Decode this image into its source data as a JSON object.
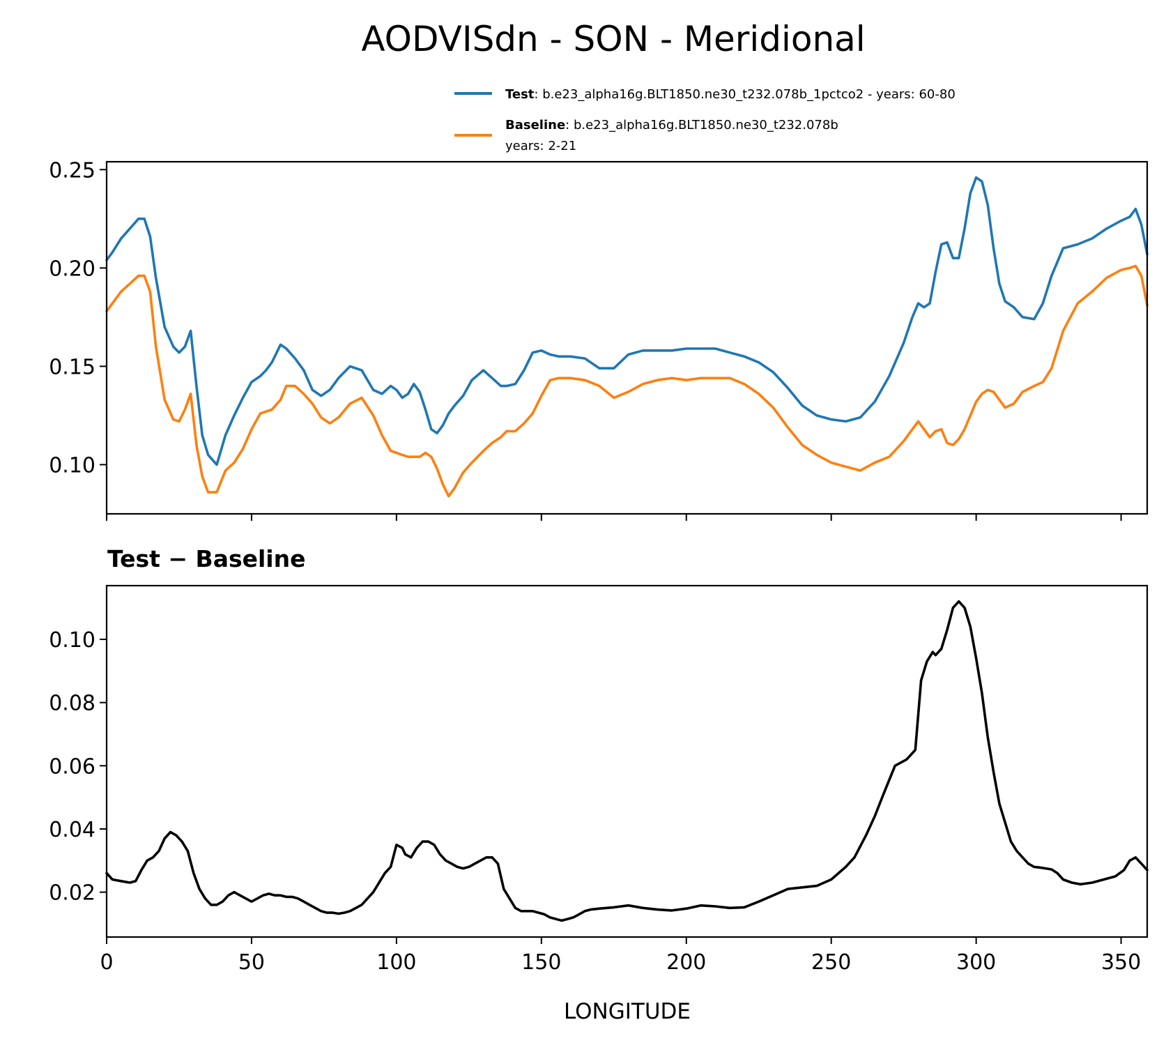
{
  "title": "AODVISdn - SON - Meridional",
  "colors": {
    "test": "#1f77b4",
    "baseline": "#ff7f0e",
    "diff": "#000000"
  },
  "legend": {
    "test": {
      "label_bold": "Test",
      "label_rest": ": b.e23_alpha16g.BLT1850.ne30_t232.078b_1pctco2 - years: 60-80"
    },
    "baseline": {
      "label_bold": "Baseline",
      "label_rest": ": b.e23_alpha16g.BLT1850.ne30_t232.078b",
      "label_line2": "years: 2-21"
    }
  },
  "chart_data": [
    {
      "type": "line",
      "panel": "top",
      "title": "",
      "xlabel": "",
      "ylabel": "",
      "xlim": [
        0,
        359
      ],
      "ylim": [
        0.075,
        0.254
      ],
      "yticks": [
        0.1,
        0.15,
        0.2,
        0.25
      ],
      "ytick_labels": [
        "0.10",
        "0.15",
        "0.20",
        "0.25"
      ],
      "xticks": [
        0,
        50,
        100,
        150,
        200,
        250,
        300,
        350
      ],
      "series": [
        {
          "name": "Test",
          "x": [
            0,
            2,
            5,
            8,
            11,
            13,
            15,
            17,
            20,
            23,
            25,
            27,
            29,
            31,
            33,
            35,
            38,
            41,
            44,
            47,
            50,
            53,
            55,
            57,
            60,
            62,
            65,
            68,
            71,
            74,
            77,
            80,
            84,
            88,
            92,
            95,
            98,
            100,
            102,
            104,
            106,
            108,
            110,
            112,
            114,
            116,
            118,
            120,
            123,
            126,
            130,
            133,
            136,
            138,
            141,
            144,
            147,
            150,
            153,
            156,
            160,
            165,
            170,
            175,
            180,
            185,
            190,
            195,
            200,
            205,
            210,
            215,
            220,
            225,
            230,
            235,
            240,
            245,
            250,
            255,
            260,
            265,
            270,
            275,
            278,
            280,
            282,
            284,
            286,
            288,
            290,
            292,
            294,
            296,
            298,
            300,
            302,
            304,
            306,
            308,
            310,
            313,
            316,
            320,
            323,
            326,
            330,
            335,
            340,
            345,
            350,
            353,
            355,
            357,
            359
          ],
          "values": [
            0.204,
            0.208,
            0.215,
            0.22,
            0.225,
            0.225,
            0.216,
            0.195,
            0.17,
            0.16,
            0.157,
            0.16,
            0.168,
            0.14,
            0.115,
            0.105,
            0.1,
            0.115,
            0.125,
            0.134,
            0.142,
            0.145,
            0.148,
            0.152,
            0.161,
            0.159,
            0.154,
            0.148,
            0.138,
            0.135,
            0.138,
            0.144,
            0.15,
            0.148,
            0.138,
            0.136,
            0.14,
            0.138,
            0.134,
            0.136,
            0.141,
            0.137,
            0.128,
            0.118,
            0.116,
            0.12,
            0.126,
            0.13,
            0.135,
            0.143,
            0.148,
            0.144,
            0.14,
            0.14,
            0.141,
            0.148,
            0.157,
            0.158,
            0.156,
            0.155,
            0.155,
            0.154,
            0.149,
            0.149,
            0.156,
            0.158,
            0.158,
            0.158,
            0.159,
            0.159,
            0.159,
            0.157,
            0.155,
            0.152,
            0.147,
            0.139,
            0.13,
            0.125,
            0.123,
            0.122,
            0.124,
            0.132,
            0.145,
            0.162,
            0.175,
            0.182,
            0.18,
            0.182,
            0.198,
            0.212,
            0.213,
            0.205,
            0.205,
            0.22,
            0.238,
            0.246,
            0.244,
            0.232,
            0.21,
            0.192,
            0.183,
            0.18,
            0.175,
            0.174,
            0.182,
            0.196,
            0.21,
            0.212,
            0.215,
            0.22,
            0.224,
            0.226,
            0.23,
            0.222,
            0.207
          ]
        },
        {
          "name": "Baseline",
          "x": [
            0,
            2,
            5,
            8,
            11,
            13,
            15,
            17,
            20,
            23,
            25,
            27,
            29,
            31,
            33,
            35,
            38,
            41,
            44,
            47,
            50,
            53,
            55,
            57,
            60,
            62,
            65,
            68,
            71,
            74,
            77,
            80,
            84,
            88,
            92,
            95,
            98,
            100,
            102,
            104,
            106,
            108,
            110,
            112,
            114,
            116,
            118,
            120,
            123,
            126,
            130,
            133,
            136,
            138,
            141,
            144,
            147,
            150,
            153,
            156,
            160,
            165,
            170,
            175,
            180,
            185,
            190,
            195,
            200,
            205,
            210,
            215,
            220,
            225,
            230,
            235,
            240,
            245,
            250,
            255,
            260,
            265,
            270,
            275,
            278,
            280,
            282,
            284,
            286,
            288,
            290,
            292,
            294,
            296,
            298,
            300,
            302,
            304,
            306,
            308,
            310,
            313,
            316,
            320,
            323,
            326,
            330,
            335,
            340,
            345,
            350,
            353,
            355,
            357,
            359
          ],
          "values": [
            0.178,
            0.182,
            0.188,
            0.192,
            0.196,
            0.196,
            0.188,
            0.16,
            0.133,
            0.123,
            0.122,
            0.128,
            0.136,
            0.11,
            0.094,
            0.086,
            0.086,
            0.097,
            0.101,
            0.108,
            0.118,
            0.126,
            0.127,
            0.128,
            0.133,
            0.14,
            0.14,
            0.136,
            0.131,
            0.124,
            0.121,
            0.124,
            0.131,
            0.134,
            0.125,
            0.115,
            0.107,
            0.106,
            0.105,
            0.104,
            0.104,
            0.104,
            0.106,
            0.104,
            0.098,
            0.09,
            0.084,
            0.088,
            0.096,
            0.101,
            0.107,
            0.111,
            0.114,
            0.117,
            0.117,
            0.121,
            0.126,
            0.135,
            0.143,
            0.144,
            0.144,
            0.143,
            0.14,
            0.134,
            0.137,
            0.141,
            0.143,
            0.144,
            0.143,
            0.144,
            0.144,
            0.144,
            0.141,
            0.136,
            0.129,
            0.119,
            0.11,
            0.105,
            0.101,
            0.099,
            0.097,
            0.101,
            0.104,
            0.112,
            0.118,
            0.122,
            0.118,
            0.114,
            0.117,
            0.118,
            0.111,
            0.11,
            0.113,
            0.118,
            0.125,
            0.132,
            0.136,
            0.138,
            0.137,
            0.133,
            0.129,
            0.131,
            0.137,
            0.14,
            0.142,
            0.149,
            0.168,
            0.182,
            0.188,
            0.195,
            0.199,
            0.2,
            0.201,
            0.196,
            0.181
          ]
        }
      ]
    },
    {
      "type": "line",
      "panel": "bottom",
      "title": "Test − Baseline",
      "xlabel": "LONGITUDE",
      "ylabel": "",
      "xlim": [
        0,
        359
      ],
      "ylim": [
        0.0058,
        0.117
      ],
      "yticks": [
        0.02,
        0.04,
        0.06,
        0.08,
        0.1
      ],
      "ytick_labels": [
        "0.02",
        "0.04",
        "0.06",
        "0.08",
        "0.10"
      ],
      "xticks": [
        0,
        50,
        100,
        150,
        200,
        250,
        300,
        350
      ],
      "xtick_labels": [
        "0",
        "50",
        "100",
        "150",
        "200",
        "250",
        "300",
        "350"
      ],
      "series": [
        {
          "name": "Test − Baseline",
          "x": [
            0,
            2,
            5,
            8,
            10,
            12,
            14,
            16,
            18,
            20,
            22,
            24,
            26,
            28,
            30,
            32,
            34,
            36,
            38,
            40,
            42,
            44,
            46,
            48,
            50,
            52,
            54,
            56,
            58,
            60,
            62,
            64,
            66,
            68,
            70,
            72,
            74,
            76,
            78,
            80,
            82,
            84,
            86,
            88,
            90,
            92,
            94,
            96,
            98,
            100,
            102,
            103,
            105,
            107,
            109,
            111,
            113,
            115,
            117,
            119,
            121,
            123,
            125,
            127,
            129,
            131,
            133,
            135,
            137,
            139,
            141,
            143,
            145,
            147,
            149,
            151,
            153,
            155,
            157,
            159,
            161,
            163,
            165,
            167,
            170,
            175,
            180,
            185,
            190,
            195,
            200,
            205,
            210,
            215,
            220,
            225,
            230,
            235,
            240,
            245,
            250,
            255,
            258,
            262,
            265,
            268,
            272,
            276,
            279,
            281,
            283,
            285,
            286,
            288,
            290,
            292,
            294,
            296,
            298,
            300,
            302,
            304,
            306,
            308,
            310,
            312,
            314,
            316,
            318,
            320,
            322,
            324,
            326,
            328,
            330,
            333,
            336,
            340,
            344,
            348,
            351,
            353,
            355,
            357,
            359
          ],
          "values": [
            0.026,
            0.024,
            0.0235,
            0.023,
            0.0235,
            0.027,
            0.03,
            0.031,
            0.033,
            0.037,
            0.039,
            0.038,
            0.036,
            0.033,
            0.026,
            0.021,
            0.018,
            0.016,
            0.016,
            0.017,
            0.019,
            0.02,
            0.019,
            0.018,
            0.017,
            0.018,
            0.019,
            0.0195,
            0.019,
            0.019,
            0.0185,
            0.0185,
            0.018,
            0.017,
            0.016,
            0.015,
            0.014,
            0.0135,
            0.0135,
            0.0132,
            0.0135,
            0.014,
            0.015,
            0.016,
            0.018,
            0.02,
            0.023,
            0.026,
            0.028,
            0.035,
            0.034,
            0.032,
            0.031,
            0.034,
            0.036,
            0.036,
            0.035,
            0.032,
            0.03,
            0.029,
            0.028,
            0.0275,
            0.028,
            0.029,
            0.03,
            0.031,
            0.031,
            0.029,
            0.021,
            0.018,
            0.015,
            0.014,
            0.014,
            0.014,
            0.0135,
            0.013,
            0.012,
            0.0115,
            0.011,
            0.0115,
            0.012,
            0.013,
            0.014,
            0.0145,
            0.0148,
            0.0152,
            0.0158,
            0.015,
            0.0145,
            0.0142,
            0.0148,
            0.0158,
            0.0155,
            0.015,
            0.0152,
            0.017,
            0.019,
            0.021,
            0.0215,
            0.022,
            0.024,
            0.028,
            0.031,
            0.038,
            0.044,
            0.051,
            0.06,
            0.062,
            0.065,
            0.087,
            0.093,
            0.096,
            0.095,
            0.097,
            0.103,
            0.11,
            0.112,
            0.11,
            0.104,
            0.094,
            0.083,
            0.069,
            0.058,
            0.048,
            0.042,
            0.036,
            0.033,
            0.031,
            0.029,
            0.028,
            0.0278,
            0.0275,
            0.0272,
            0.026,
            0.024,
            0.023,
            0.0225,
            0.023,
            0.024,
            0.025,
            0.027,
            0.03,
            0.031,
            0.029,
            0.027
          ]
        }
      ]
    }
  ]
}
